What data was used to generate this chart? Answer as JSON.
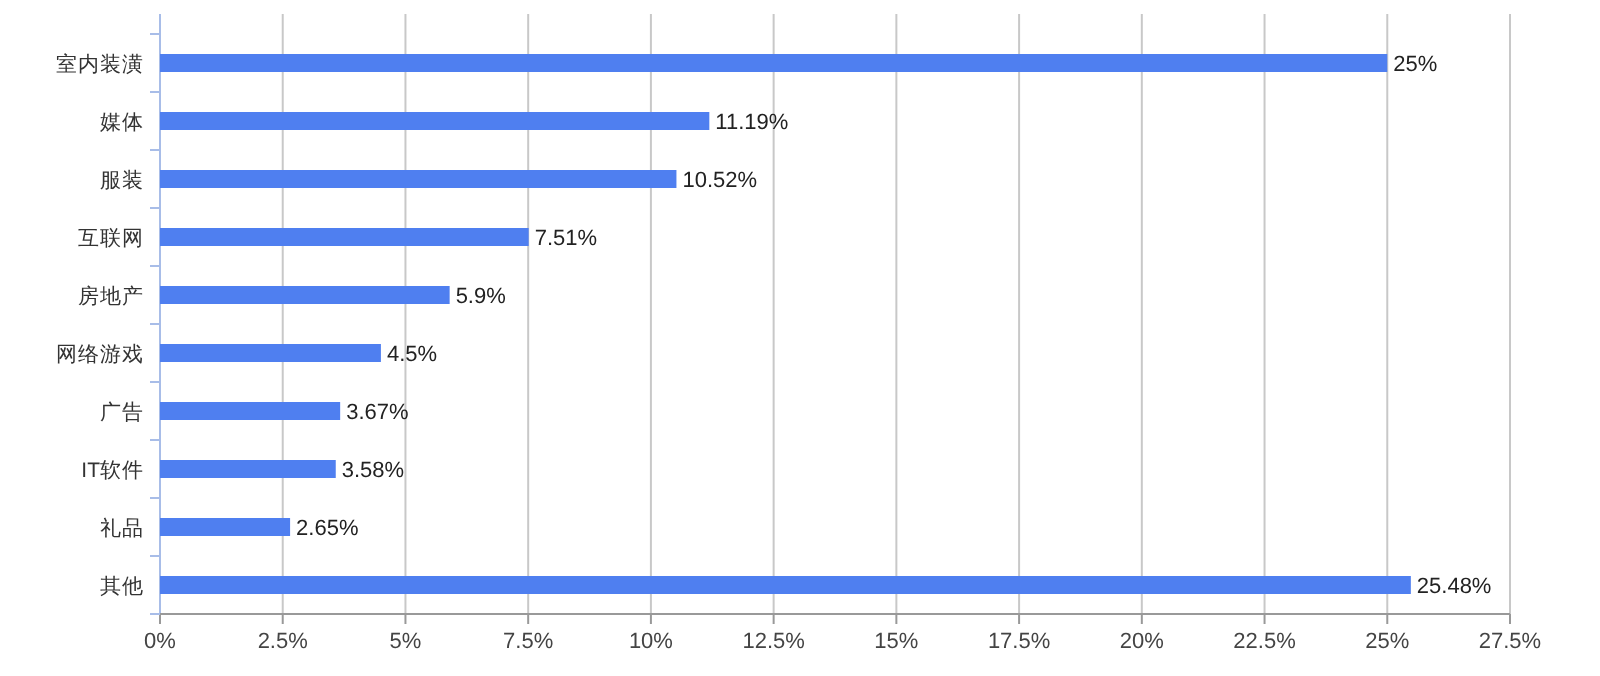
{
  "chart_data": {
    "type": "bar",
    "orientation": "horizontal",
    "categories": [
      "室内装潢",
      "媒体",
      "服装",
      "互联网",
      "房地产",
      "网络游戏",
      "广告",
      "IT软件",
      "礼品",
      "其他"
    ],
    "values": [
      25,
      11.19,
      10.52,
      7.51,
      5.9,
      4.5,
      3.67,
      3.58,
      2.65,
      25.48
    ],
    "value_labels": [
      "25%",
      "11.19%",
      "10.52%",
      "7.51%",
      "5.9%",
      "4.5%",
      "3.67%",
      "3.58%",
      "2.65%",
      "25.48%"
    ],
    "color": "#4f7ff0",
    "xlim": [
      0,
      27.5
    ],
    "xticks": [
      {
        "value": 0,
        "label": "0%"
      },
      {
        "value": 2.5,
        "label": "2.5%"
      },
      {
        "value": 5,
        "label": "5%"
      },
      {
        "value": 7.5,
        "label": "7.5%"
      },
      {
        "value": 10,
        "label": "10%"
      },
      {
        "value": 12.5,
        "label": "12.5%"
      },
      {
        "value": 15,
        "label": "15%"
      },
      {
        "value": 17.5,
        "label": "17.5%"
      },
      {
        "value": 20,
        "label": "20%"
      },
      {
        "value": 22.5,
        "label": "22.5%"
      },
      {
        "value": 25,
        "label": "25%"
      },
      {
        "value": 27.5,
        "label": "27.5%"
      }
    ],
    "grid": "x"
  }
}
